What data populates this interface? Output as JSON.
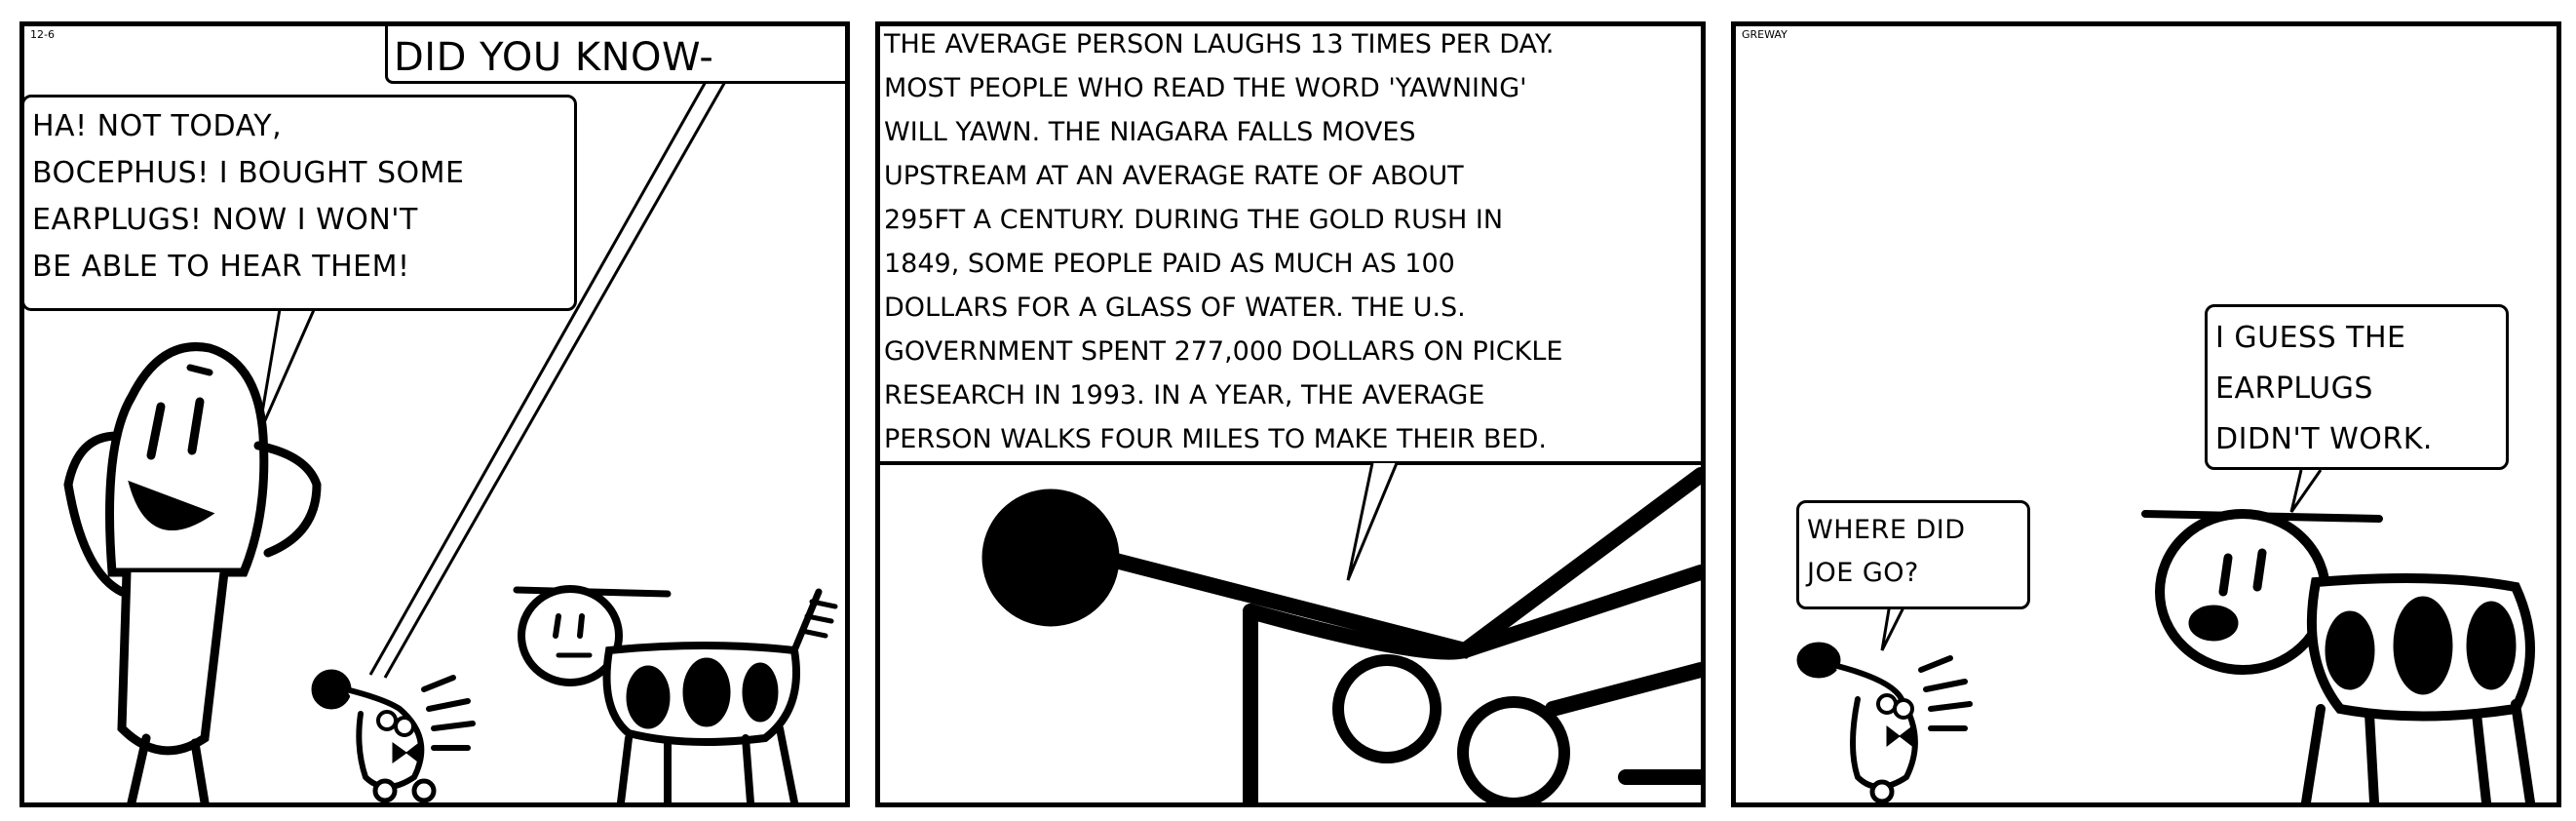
{
  "strip": {
    "date": "12-6",
    "author": "GREWAY"
  },
  "panel1": {
    "caption": "DID YOU KNOW-",
    "joe_speech": "HA! NOT TODAY,\nBOCEPHUS! I BOUGHT SOME\nEARPLUGS! NOW I WON'T\nBE ABLE TO HEAR THEM!"
  },
  "panel2": {
    "facts": "THE AVERAGE PERSON LAUGHS 13 TIMES PER DAY.\nMOST PEOPLE WHO READ THE WORD 'YAWNING'\nWILL YAWN. THE NIAGARA FALLS MOVES\nUPSTREAM AT AN AVERAGE RATE OF ABOUT\n295FT A CENTURY. DURING THE GOLD RUSH IN\n1849, SOME PEOPLE PAID AS MUCH AS 100\nDOLLARS FOR A GLASS OF WATER. THE U.S.\nGOVERNMENT SPENT 277,000 DOLLARS ON PICKLE\nRESEARCH IN 1993. IN A YEAR, THE AVERAGE\nPERSON WALKS FOUR MILES TO MAKE THEIR BED."
  },
  "panel3": {
    "bocephus_speech": "WHERE DID\nJOE GO?",
    "dog_speech": "I GUESS THE\nEARPLUGS\nDIDN'T WORK."
  }
}
